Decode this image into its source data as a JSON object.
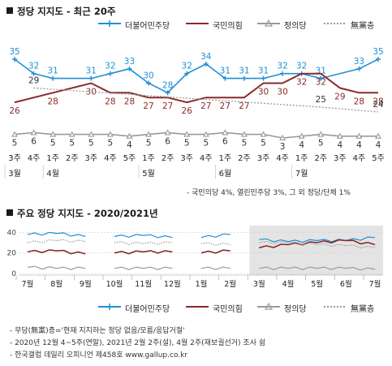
{
  "section1": {
    "title": "정당 지지도 - 최근 20주"
  },
  "section2": {
    "title": "주요 정당 지지도 - 2020/2021년"
  },
  "legend": [
    {
      "name": "더불어민주당",
      "color": "#1f8fd6",
      "style": "solid-marker"
    },
    {
      "name": "국민의힘",
      "color": "#8b2a2a",
      "style": "solid"
    },
    {
      "name": "정의당",
      "color": "#9a9a9a",
      "style": "solid-marker"
    },
    {
      "name": "無黨층",
      "color": "#9a9a9a",
      "style": "dotted"
    }
  ],
  "note1": "- 국민의당 4%, 열린민주당 3%, 그 외 정당/단체 1%",
  "footnotes": [
    "- 무당(無黨)층='현재 지지하는 정당 없음/모름/응답거절'",
    "- 2020년 12월 4~5주(연말), 2021년 2월 2주(설), 4월 2주(재보궐선거) 조사 쉼",
    "- 한국갤럽 데일리 오피니언 제458호 www.gallup.co.kr"
  ],
  "chart_data": [
    {
      "type": "line",
      "title": "정당 지지도 - 최근 20주",
      "categories": [
        "3주",
        "4주",
        "1주",
        "2주",
        "3주",
        "4주",
        "5주",
        "1주",
        "2주",
        "3주",
        "4주",
        "1주",
        "2주",
        "3주",
        "4주",
        "1주",
        "2주",
        "3주",
        "4주",
        "5주"
      ],
      "month_labels": [
        {
          "label": "3월",
          "index": 0
        },
        {
          "label": "4월",
          "index": 2
        },
        {
          "label": "5월",
          "index": 7
        },
        {
          "label": "6월",
          "index": 11
        },
        {
          "label": "7월",
          "index": 15
        }
      ],
      "series": [
        {
          "name": "더불어민주당",
          "color": "#1f8fd6",
          "values": [
            35,
            32,
            31,
            null,
            31,
            32,
            33,
            30,
            28,
            32,
            34,
            31,
            31,
            31,
            32,
            32,
            31,
            null,
            33,
            35
          ]
        },
        {
          "name": "국민의힘",
          "color": "#8b2a2a",
          "values": [
            26,
            null,
            28,
            null,
            30,
            28,
            28,
            27,
            27,
            26,
            27,
            27,
            27,
            30,
            30,
            32,
            32,
            29,
            28,
            28
          ]
        },
        {
          "name": "정의당",
          "color": "#9a9a9a",
          "values": [
            5,
            6,
            5,
            5,
            5,
            5,
            4,
            5,
            6,
            5,
            5,
            6,
            5,
            5,
            3,
            4,
            5,
            4,
            4,
            4
          ]
        },
        {
          "name": "無黨층",
          "color": "#9a9a9a",
          "values": [
            null,
            29,
            null,
            null,
            null,
            null,
            null,
            null,
            null,
            null,
            null,
            null,
            null,
            null,
            null,
            null,
            25,
            null,
            null,
            24
          ]
        }
      ],
      "ylim": [
        0,
        40
      ]
    },
    {
      "type": "line",
      "title": "주요 정당 지지도 - 2020/2021년",
      "categories": [
        "7월",
        "8월",
        "9월",
        "10월",
        "11월",
        "12월",
        "1월",
        "2월",
        "3월",
        "4월",
        "5월",
        "6월",
        "7월"
      ],
      "yticks": [
        40,
        20,
        0
      ],
      "ylim": [
        0,
        45
      ],
      "shaded_from": "3월",
      "series": [
        {
          "name": "더불어민주당",
          "color": "#1f8fd6",
          "values": [
            38,
            39,
            36,
            36,
            37,
            35,
            35,
            38,
            33,
            31,
            32,
            32,
            35
          ]
        },
        {
          "name": "국민의힘",
          "color": "#8b2a2a",
          "values": [
            21,
            22,
            19,
            20,
            21,
            21,
            20,
            22,
            25,
            28,
            30,
            32,
            28
          ]
        },
        {
          "name": "정의당",
          "color": "#9a9a9a",
          "values": [
            6,
            5,
            5,
            5,
            5,
            5,
            5,
            5,
            5,
            5,
            5,
            5,
            4
          ]
        },
        {
          "name": "無黨층",
          "color": "#9a9a9a",
          "values": [
            30,
            32,
            31,
            30,
            29,
            30,
            29,
            28,
            30,
            30,
            28,
            27,
            25
          ]
        }
      ]
    }
  ]
}
